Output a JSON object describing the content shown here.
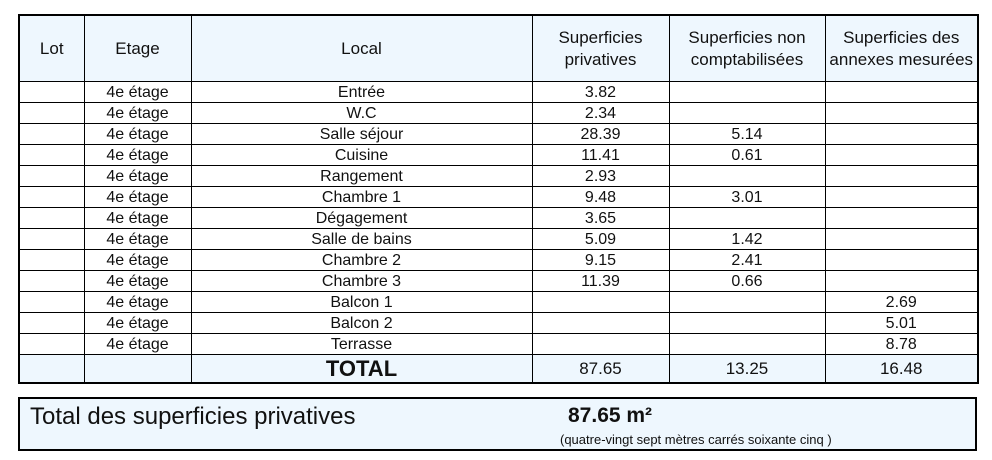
{
  "headers": {
    "lot": "Lot",
    "etage": "Etage",
    "local": "Local",
    "privatives": "Superficies privatives",
    "non_comptabilisees": "Superficies non comptabilisées",
    "annexes": "Superficies des annexes mesurées"
  },
  "rows": [
    {
      "lot": "",
      "etage": "4e étage",
      "local": "Entrée",
      "privatives": "3.82",
      "non_comptabilisees": "",
      "annexes": ""
    },
    {
      "lot": "",
      "etage": "4e étage",
      "local": "W.C",
      "privatives": "2.34",
      "non_comptabilisees": "",
      "annexes": ""
    },
    {
      "lot": "",
      "etage": "4e étage",
      "local": "Salle séjour",
      "privatives": "28.39",
      "non_comptabilisees": "5.14",
      "annexes": ""
    },
    {
      "lot": "",
      "etage": "4e étage",
      "local": "Cuisine",
      "privatives": "11.41",
      "non_comptabilisees": "0.61",
      "annexes": ""
    },
    {
      "lot": "",
      "etage": "4e étage",
      "local": "Rangement",
      "privatives": "2.93",
      "non_comptabilisees": "",
      "annexes": ""
    },
    {
      "lot": "",
      "etage": "4e étage",
      "local": "Chambre 1",
      "privatives": "9.48",
      "non_comptabilisees": "3.01",
      "annexes": ""
    },
    {
      "lot": "",
      "etage": "4e étage",
      "local": "Dégagement",
      "privatives": "3.65",
      "non_comptabilisees": "",
      "annexes": ""
    },
    {
      "lot": "",
      "etage": "4e étage",
      "local": "Salle de bains",
      "privatives": "5.09",
      "non_comptabilisees": "1.42",
      "annexes": ""
    },
    {
      "lot": "",
      "etage": "4e étage",
      "local": "Chambre 2",
      "privatives": "9.15",
      "non_comptabilisees": "2.41",
      "annexes": ""
    },
    {
      "lot": "",
      "etage": "4e étage",
      "local": "Chambre 3",
      "privatives": "11.39",
      "non_comptabilisees": "0.66",
      "annexes": ""
    },
    {
      "lot": "",
      "etage": "4e étage",
      "local": "Balcon 1",
      "privatives": "",
      "non_comptabilisees": "",
      "annexes": "2.69"
    },
    {
      "lot": "",
      "etage": "4e étage",
      "local": "Balcon 2",
      "privatives": "",
      "non_comptabilisees": "",
      "annexes": "5.01"
    },
    {
      "lot": "",
      "etage": "4e étage",
      "local": "Terrasse",
      "privatives": "",
      "non_comptabilisees": "",
      "annexes": "8.78"
    }
  ],
  "total": {
    "label": "TOTAL",
    "privatives": "87.65",
    "non_comptabilisees": "13.25",
    "annexes": "16.48"
  },
  "summary": {
    "label": "Total des superficies privatives",
    "value": "87.65 m²",
    "words": "(quatre-vingt sept mètres carrés soixante cinq  )"
  }
}
